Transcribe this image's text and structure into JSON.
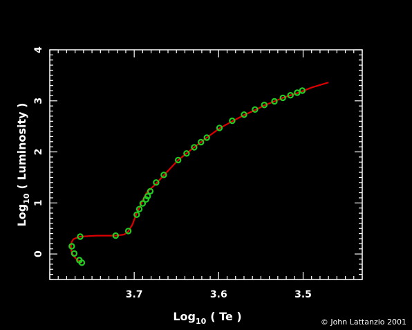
{
  "chart_data": {
    "type": "line",
    "title": "",
    "xlabel": {
      "prefix": "Log",
      "sub": "10",
      "suffix": "( Te )"
    },
    "ylabel": {
      "prefix": "Log",
      "sub": "10",
      "suffix": "( Luminosity )"
    },
    "xlim": [
      3.8,
      3.43
    ],
    "ylim": [
      -0.5,
      4
    ],
    "x_reversed": true,
    "x_ticks": [
      "3.7",
      "3.6",
      "3.5"
    ],
    "x_tick_values": [
      3.7,
      3.6,
      3.5
    ],
    "y_ticks": [
      "0",
      "1",
      "2",
      "3",
      "4"
    ],
    "y_tick_values": [
      0,
      1,
      2,
      3,
      4
    ],
    "grid": false,
    "colors": {
      "line": "#dd0000",
      "markers": "#22cc22",
      "background": "#000000",
      "axes": "#ffffff"
    },
    "series": [
      {
        "kind": "track",
        "x": [
          3.762,
          3.765,
          3.768,
          3.771,
          3.774,
          3.775,
          3.774,
          3.772,
          3.768,
          3.764,
          3.755,
          3.745,
          3.735,
          3.722,
          3.712,
          3.707,
          3.702,
          3.698,
          3.697,
          3.694,
          3.692,
          3.69,
          3.688,
          3.686,
          3.684,
          3.681,
          3.674,
          3.665,
          3.648,
          3.638,
          3.629,
          3.621,
          3.614,
          3.599,
          3.584,
          3.57,
          3.557,
          3.546,
          3.534,
          3.524,
          3.515,
          3.507,
          3.501,
          3.49,
          3.47
        ],
        "y": [
          -0.17,
          -0.14,
          -0.11,
          -0.05,
          0.02,
          0.14,
          0.24,
          0.29,
          0.32,
          0.34,
          0.35,
          0.36,
          0.36,
          0.36,
          0.38,
          0.44,
          0.58,
          0.76,
          0.8,
          0.9,
          0.97,
          1.05,
          1.12,
          1.18,
          1.23,
          1.27,
          1.38,
          1.54,
          1.84,
          1.97,
          2.09,
          2.19,
          2.28,
          2.46,
          2.6,
          2.72,
          2.82,
          2.91,
          2.99,
          3.06,
          3.11,
          3.15,
          3.19,
          3.26,
          3.36
        ]
      },
      {
        "kind": "models",
        "x": [
          3.762,
          3.765,
          3.771,
          3.774,
          3.764,
          3.722,
          3.707,
          3.697,
          3.694,
          3.69,
          3.686,
          3.684,
          3.681,
          3.674,
          3.665,
          3.648,
          3.638,
          3.629,
          3.621,
          3.614,
          3.599,
          3.584,
          3.57,
          3.557,
          3.546,
          3.534,
          3.524,
          3.515,
          3.507,
          3.501
        ],
        "y": [
          -0.17,
          -0.12,
          0.01,
          0.15,
          0.34,
          0.36,
          0.45,
          0.77,
          0.88,
          0.99,
          1.07,
          1.13,
          1.23,
          1.4,
          1.55,
          1.84,
          1.97,
          2.09,
          2.19,
          2.28,
          2.47,
          2.61,
          2.73,
          2.83,
          2.92,
          2.99,
          3.06,
          3.11,
          3.16,
          3.2
        ]
      }
    ]
  },
  "credit": "© John Lattanzio 2001"
}
